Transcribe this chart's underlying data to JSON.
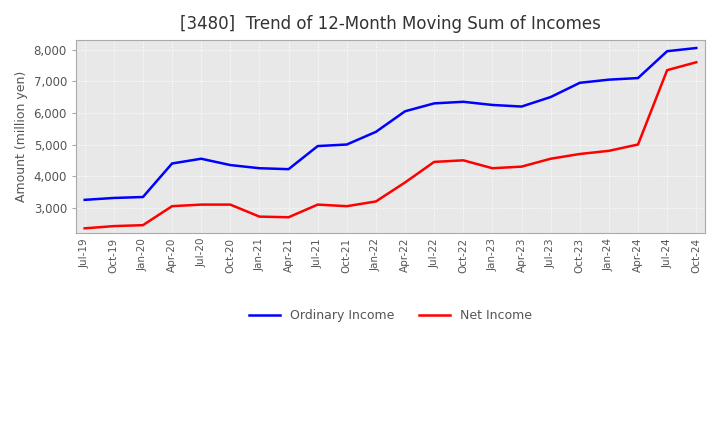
{
  "title": "[3480]  Trend of 12-Month Moving Sum of Incomes",
  "ylabel": "Amount (million yen)",
  "ylim": [
    2200,
    8300
  ],
  "yticks": [
    3000,
    4000,
    5000,
    6000,
    7000,
    8000
  ],
  "background_color": "#ffffff",
  "plot_bg_color": "#e8e8e8",
  "grid_color": "#ffffff",
  "ordinary_income_color": "#0000ff",
  "net_income_color": "#ff0000",
  "x_labels": [
    "Jul-19",
    "Oct-19",
    "Jan-20",
    "Apr-20",
    "Jul-20",
    "Oct-20",
    "Jan-21",
    "Apr-21",
    "Jul-21",
    "Oct-21",
    "Jan-22",
    "Apr-22",
    "Jul-22",
    "Oct-22",
    "Jan-23",
    "Apr-23",
    "Jul-23",
    "Oct-23",
    "Jan-24",
    "Apr-24",
    "Jul-24",
    "Oct-24"
  ],
  "ordinary_income": [
    3250,
    3310,
    3340,
    4400,
    4550,
    4350,
    4250,
    4220,
    4950,
    5000,
    5400,
    6050,
    6300,
    6350,
    6250,
    6200,
    6500,
    6950,
    7050,
    7100,
    7950,
    8050
  ],
  "net_income": [
    2350,
    2420,
    2450,
    3050,
    3100,
    3100,
    2720,
    2700,
    3100,
    3050,
    3200,
    3800,
    4450,
    4500,
    4250,
    4300,
    4550,
    4700,
    4800,
    5000,
    7350,
    7600
  ]
}
